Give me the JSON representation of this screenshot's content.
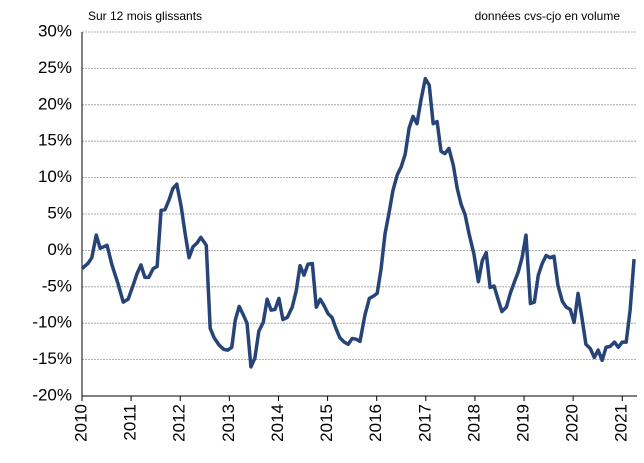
{
  "chart_data": {
    "type": "line",
    "annotations": [
      "Sur 12 mois glissants",
      "données cvs-cjo en volume"
    ],
    "xlim": [
      2010,
      2021.3
    ],
    "xticks": [
      2010,
      2011,
      2012,
      2013,
      2014,
      2015,
      2016,
      2017,
      2018,
      2019,
      2020,
      2021
    ],
    "ylim": [
      -20,
      30
    ],
    "yticks": [
      {
        "value": -20,
        "label": "-20%"
      },
      {
        "value": -15,
        "label": "-15%"
      },
      {
        "value": -10,
        "label": "-10%"
      },
      {
        "value": -5,
        "label": "-5%"
      },
      {
        "value": 0,
        "label": "0%"
      },
      {
        "value": 5,
        "label": "5%"
      },
      {
        "value": 10,
        "label": "10%"
      },
      {
        "value": 15,
        "label": "15%"
      },
      {
        "value": 20,
        "label": "20%"
      },
      {
        "value": 25,
        "label": "25%"
      },
      {
        "value": 30,
        "label": "30%"
      }
    ],
    "grid": true,
    "x": [
      2010.0,
      2010.12,
      2010.2,
      2010.29,
      2010.37,
      2010.51,
      2010.61,
      2010.73,
      2010.84,
      2010.94,
      2011.04,
      2011.12,
      2011.2,
      2011.28,
      2011.36,
      2011.45,
      2011.53,
      2011.61,
      2011.69,
      2011.77,
      2011.85,
      2011.93,
      2012.02,
      2012.1,
      2012.18,
      2012.26,
      2012.34,
      2012.42,
      2012.53,
      2012.61,
      2012.69,
      2012.79,
      2012.89,
      2012.97,
      2013.05,
      2013.12,
      2013.2,
      2013.28,
      2013.36,
      2013.44,
      2013.52,
      2013.6,
      2013.69,
      2013.77,
      2013.85,
      2013.93,
      2014.01,
      2014.09,
      2014.18,
      2014.28,
      2014.36,
      2014.44,
      2014.52,
      2014.6,
      2014.69,
      2014.77,
      2014.85,
      2014.93,
      2015.01,
      2015.09,
      2015.17,
      2015.25,
      2015.34,
      2015.42,
      2015.5,
      2015.58,
      2015.66,
      2015.76,
      2015.85,
      2015.93,
      2016.01,
      2016.09,
      2016.17,
      2016.25,
      2016.33,
      2016.42,
      2016.5,
      2016.58,
      2016.66,
      2016.74,
      2016.82,
      2016.9,
      2016.99,
      2017.07,
      2017.15,
      2017.23,
      2017.31,
      2017.39,
      2017.47,
      2017.56,
      2017.64,
      2017.72,
      2017.8,
      2017.88,
      2017.98,
      2018.07,
      2018.15,
      2018.23,
      2018.31,
      2018.39,
      2018.47,
      2018.55,
      2018.64,
      2018.72,
      2018.8,
      2018.88,
      2018.96,
      2019.04,
      2019.13,
      2019.21,
      2019.29,
      2019.37,
      2019.45,
      2019.53,
      2019.61,
      2019.69,
      2019.78,
      2019.86,
      2019.94,
      2020.02,
      2020.1,
      2020.18,
      2020.26,
      2020.35,
      2020.43,
      2020.51,
      2020.59,
      2020.67,
      2020.75,
      2020.84,
      2020.92,
      2021.0,
      2021.08,
      2021.16,
      2021.24
    ],
    "series": [
      {
        "color": "#264478",
        "values": [
          -2.5,
          -1.8,
          -1,
          2.1,
          0.3,
          0.7,
          -2,
          -4.5,
          -7.1,
          -6.7,
          -4.8,
          -3.2,
          -2,
          -3.7,
          -3.7,
          -2.5,
          -2.2,
          5.5,
          5.6,
          6.9,
          8.5,
          9.1,
          6,
          2.3,
          -1,
          0.5,
          1,
          1.8,
          0.7,
          -10.7,
          -12,
          -13,
          -13.6,
          -13.7,
          -13.3,
          -9.6,
          -7.7,
          -8.8,
          -10,
          -16,
          -14.8,
          -11.1,
          -9.9,
          -6.7,
          -8.2,
          -8.1,
          -6.6,
          -9.5,
          -9.2,
          -7.8,
          -5.6,
          -2.1,
          -3.4,
          -1.9,
          -1.8,
          -7.8,
          -6.7,
          -7.6,
          -8.7,
          -9.2,
          -10.7,
          -12,
          -12.6,
          -12.9,
          -12.1,
          -12.2,
          -12.5,
          -8.9,
          -6.6,
          -6.3,
          -5.9,
          -2.5,
          2.3,
          5.1,
          8.2,
          10.4,
          11.5,
          13.2,
          16.8,
          18.4,
          17.4,
          20.6,
          23.6,
          22.7,
          17.4,
          17.7,
          13.6,
          13.3,
          14,
          11.7,
          8.5,
          6.3,
          4.9,
          2.3,
          -0.5,
          -4.3,
          -1.4,
          -0.3,
          -5.1,
          -4.9,
          -6.7,
          -8.4,
          -7.8,
          -5.9,
          -4.4,
          -3,
          -1,
          2.1,
          -7.3,
          -7.1,
          -3.4,
          -1.8,
          -0.7,
          -1,
          -0.8,
          -4.8,
          -7,
          -7.8,
          -8.1,
          -9.9,
          -5.9,
          -9.3,
          -12.9,
          -13.5,
          -14.7,
          -13.7,
          -15.1,
          -13.3,
          -13.2,
          -12.6,
          -13.3,
          -12.6,
          -12.6,
          -8.2,
          -1.2
        ]
      }
    ]
  }
}
